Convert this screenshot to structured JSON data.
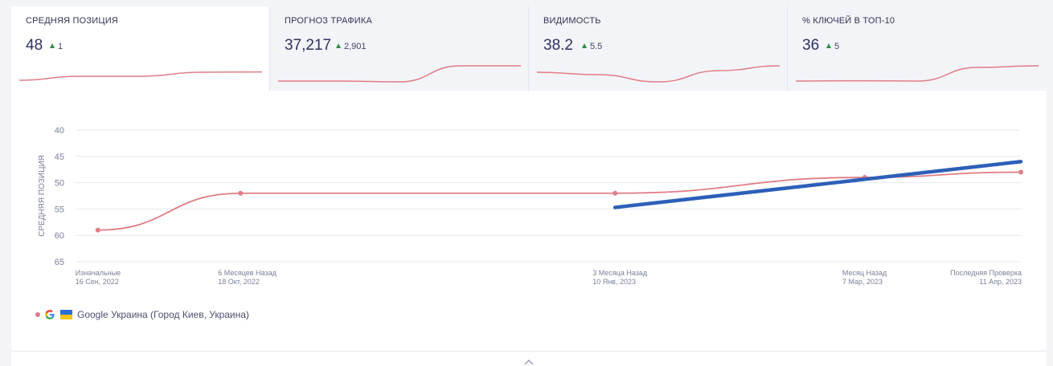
{
  "metrics": [
    {
      "title": "СРЕДНЯЯ ПОЗИЦИЯ",
      "value": "48",
      "delta": "1",
      "spark": [
        0.1,
        0.35,
        0.35,
        0.6,
        0.62
      ]
    },
    {
      "title": "ПРОГНОЗ ТРАФИКА",
      "value": "37,217",
      "delta": "2,901",
      "spark": [
        0.05,
        0.05,
        0.0,
        1.0,
        1.0
      ]
    },
    {
      "title": "ВИДИМОСТЬ",
      "value": "38.2",
      "delta": "5.5",
      "spark": [
        0.6,
        0.45,
        0.0,
        0.7,
        1.0
      ]
    },
    {
      "title": "% КЛЮЧЕЙ В ТОП-10",
      "value": "36",
      "delta": "5",
      "spark": [
        0.05,
        0.07,
        0.05,
        0.9,
        1.0
      ]
    }
  ],
  "legend": {
    "label": "Google Украина (Город Киев, Украина)"
  },
  "colors": {
    "series": "#e07c86",
    "trend": "#2d5fb8",
    "grid": "#e6e8ee",
    "up": "#2f8a4a"
  },
  "chart_data": {
    "type": "line",
    "ylabel": "СРЕДНЯЯ ПОЗИЦИЯ",
    "ylim": [
      65,
      40
    ],
    "y_reversed": true,
    "yticks": [
      40,
      45,
      50,
      55,
      60,
      65
    ],
    "x": [
      "2022-09-16",
      "2022-10-18",
      "2023-01-10",
      "2023-03-07",
      "2023-04-11"
    ],
    "xlim": [
      "2022-09-11",
      "2023-04-11"
    ],
    "x_tick_labels": [
      {
        "line1": "Изначальные",
        "line2": "16 Сен, 2022"
      },
      {
        "line1": "6 Месяцев Назад",
        "line2": "18 Окт, 2022"
      },
      {
        "line1": "3 Месяца Назад",
        "line2": "10 Янв, 2023"
      },
      {
        "line1": "Месяц Назад",
        "line2": "7 Мар, 2023"
      },
      {
        "line1": "Последняя Проверка",
        "line2": "11 Апр, 2023"
      }
    ],
    "series": [
      {
        "name": "Google Украина (Город Киев, Украина)",
        "values": [
          59,
          52,
          52,
          49,
          48
        ]
      }
    ],
    "trend": {
      "x": [
        "2023-01-10",
        "2023-04-11"
      ],
      "values": [
        54.7,
        46
      ]
    },
    "grid": true,
    "legend_position": "bottom-left"
  }
}
